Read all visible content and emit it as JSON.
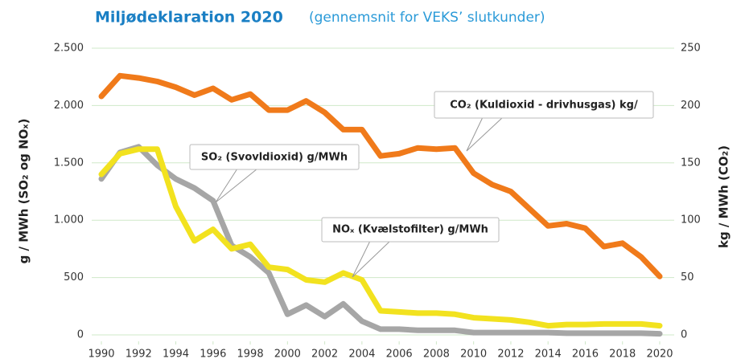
{
  "chart_data": {
    "type": "line",
    "title": "Miljødeklaration 2020",
    "subtitle": "(gennemsnit for VEKS’ slutkunder)",
    "y_label": "g / MWh (SO₂ og NOₓ)",
    "y2_label": "kg / MWh (CO₂)",
    "x": [
      1990,
      1991,
      1992,
      1993,
      1994,
      1995,
      1996,
      1997,
      1998,
      1999,
      2000,
      2001,
      2002,
      2003,
      2004,
      2005,
      2006,
      2007,
      2008,
      2009,
      2010,
      2011,
      2012,
      2013,
      2014,
      2015,
      2016,
      2017,
      2018,
      2019,
      2020
    ],
    "xlim": [
      1990,
      2020
    ],
    "xticks": [
      1990,
      1992,
      1994,
      1996,
      1998,
      2000,
      2002,
      2004,
      2006,
      2008,
      2010,
      2012,
      2014,
      2016,
      2018,
      2020
    ],
    "ylim": [
      0,
      2500
    ],
    "yticks": [
      0,
      500,
      {
        "value": 1000,
        "label": "1.000"
      },
      {
        "value": 1500,
        "label": "1.500"
      },
      {
        "value": 2000,
        "label": "2.000"
      },
      {
        "value": 2500,
        "label": "2.500"
      }
    ],
    "y2lim": [
      0,
      250
    ],
    "y2ticks": [
      0,
      50,
      100,
      150,
      200,
      250
    ],
    "grid": true,
    "series": [
      {
        "name": "SO₂ (Svovldioxid) g/MWh",
        "color": "#a6a6a6",
        "values": [
          1360,
          1590,
          1640,
          1480,
          1360,
          1280,
          1170,
          780,
          680,
          540,
          180,
          260,
          160,
          270,
          120,
          50,
          50,
          40,
          40,
          40,
          20,
          20,
          20,
          20,
          20,
          15,
          15,
          15,
          15,
          15,
          10
        ]
      },
      {
        "name": "NOₓ (Kvælstofilter) g/MWh",
        "color": "#f2e21f",
        "values": [
          1400,
          1580,
          1620,
          1620,
          1120,
          820,
          920,
          750,
          790,
          590,
          570,
          480,
          460,
          540,
          480,
          210,
          200,
          190,
          190,
          180,
          150,
          140,
          130,
          110,
          80,
          90,
          90,
          95,
          95,
          95,
          80
        ]
      },
      {
        "name": "CO₂ (Kuldioxid - drivhusgas) kg/",
        "color": "#f07a1a",
        "axis": "y2",
        "values": [
          208,
          226,
          224,
          221,
          216,
          209,
          215,
          205,
          210,
          196,
          196,
          204,
          194,
          179,
          179,
          156,
          158,
          163,
          162,
          163,
          141,
          131,
          125,
          110,
          95,
          97,
          93,
          77,
          80,
          68,
          51
        ]
      }
    ]
  }
}
